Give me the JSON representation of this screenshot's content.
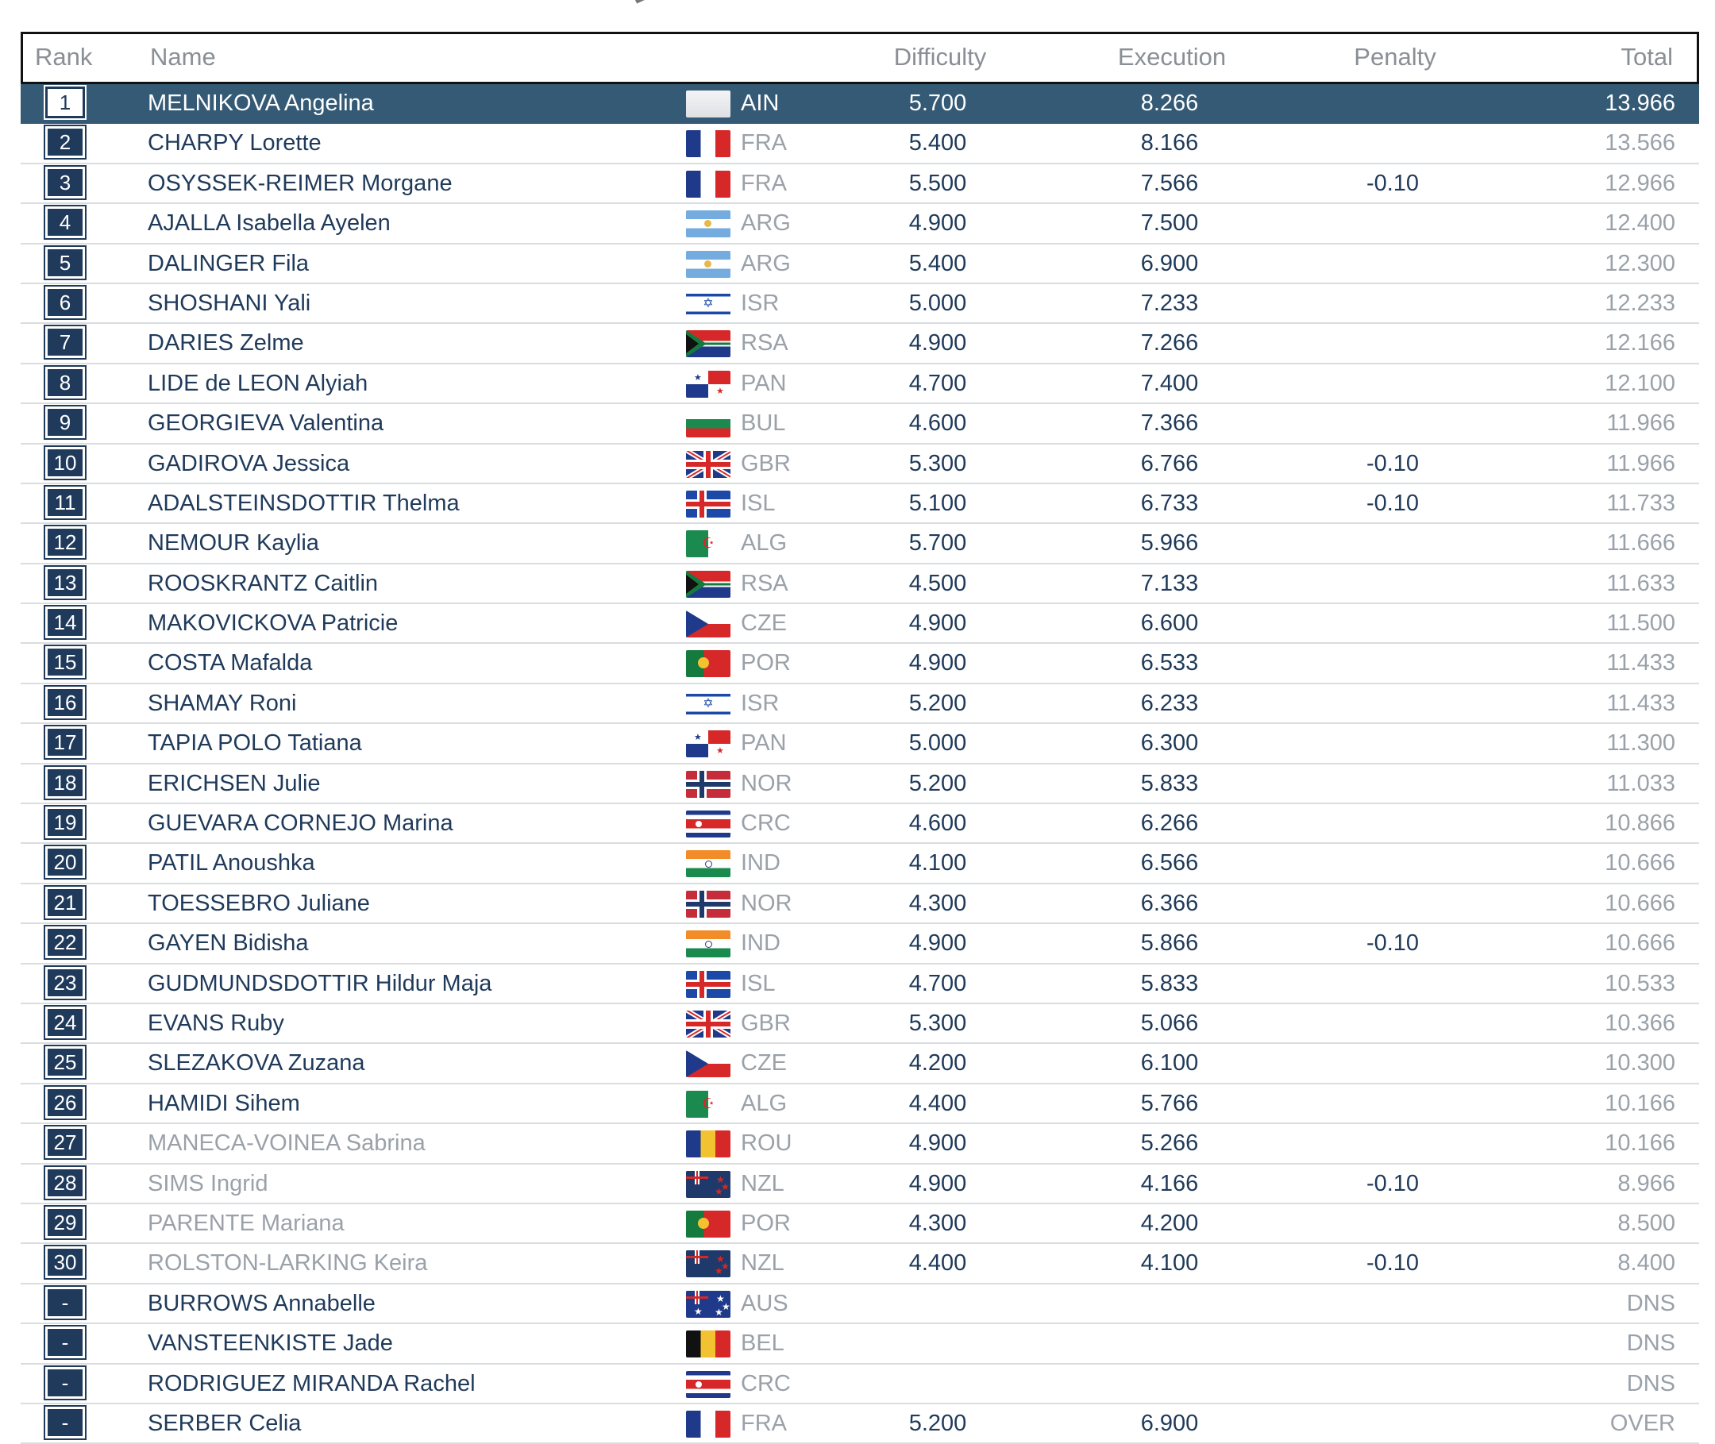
{
  "headers": {
    "rank": "Rank",
    "name": "Name",
    "difficulty": "Difficulty",
    "execution": "Execution",
    "penalty": "Penalty",
    "total": "Total"
  },
  "rows": [
    {
      "rank": "1",
      "name": "MELNIKOVA Angelina",
      "country": "AIN",
      "difficulty": "5.700",
      "execution": "8.266",
      "penalty": "",
      "total": "13.966"
    },
    {
      "rank": "2",
      "name": "CHARPY Lorette",
      "country": "FRA",
      "difficulty": "5.400",
      "execution": "8.166",
      "penalty": "",
      "total": "13.566"
    },
    {
      "rank": "3",
      "name": "OSYSSEK-REIMER Morgane",
      "country": "FRA",
      "difficulty": "5.500",
      "execution": "7.566",
      "penalty": "-0.10",
      "total": "12.966"
    },
    {
      "rank": "4",
      "name": "AJALLA Isabella Ayelen",
      "country": "ARG",
      "difficulty": "4.900",
      "execution": "7.500",
      "penalty": "",
      "total": "12.400"
    },
    {
      "rank": "5",
      "name": "DALINGER Fila",
      "country": "ARG",
      "difficulty": "5.400",
      "execution": "6.900",
      "penalty": "",
      "total": "12.300"
    },
    {
      "rank": "6",
      "name": "SHOSHANI Yali",
      "country": "ISR",
      "difficulty": "5.000",
      "execution": "7.233",
      "penalty": "",
      "total": "12.233"
    },
    {
      "rank": "7",
      "name": "DARIES Zelme",
      "country": "RSA",
      "difficulty": "4.900",
      "execution": "7.266",
      "penalty": "",
      "total": "12.166"
    },
    {
      "rank": "8",
      "name": "LIDE de LEON Alyiah",
      "country": "PAN",
      "difficulty": "4.700",
      "execution": "7.400",
      "penalty": "",
      "total": "12.100"
    },
    {
      "rank": "9",
      "name": "GEORGIEVA Valentina",
      "country": "BUL",
      "difficulty": "4.600",
      "execution": "7.366",
      "penalty": "",
      "total": "11.966"
    },
    {
      "rank": "10",
      "name": "GADIROVA Jessica",
      "country": "GBR",
      "difficulty": "5.300",
      "execution": "6.766",
      "penalty": "-0.10",
      "total": "11.966"
    },
    {
      "rank": "11",
      "name": "ADALSTEINSDOTTIR Thelma",
      "country": "ISL",
      "difficulty": "5.100",
      "execution": "6.733",
      "penalty": "-0.10",
      "total": "11.733"
    },
    {
      "rank": "12",
      "name": "NEMOUR Kaylia",
      "country": "ALG",
      "difficulty": "5.700",
      "execution": "5.966",
      "penalty": "",
      "total": "11.666"
    },
    {
      "rank": "13",
      "name": "ROOSKRANTZ Caitlin",
      "country": "RSA",
      "difficulty": "4.500",
      "execution": "7.133",
      "penalty": "",
      "total": "11.633"
    },
    {
      "rank": "14",
      "name": "MAKOVICKOVA Patricie",
      "country": "CZE",
      "difficulty": "4.900",
      "execution": "6.600",
      "penalty": "",
      "total": "11.500"
    },
    {
      "rank": "15",
      "name": "COSTA Mafalda",
      "country": "POR",
      "difficulty": "4.900",
      "execution": "6.533",
      "penalty": "",
      "total": "11.433"
    },
    {
      "rank": "16",
      "name": "SHAMAY Roni",
      "country": "ISR",
      "difficulty": "5.200",
      "execution": "6.233",
      "penalty": "",
      "total": "11.433"
    },
    {
      "rank": "17",
      "name": "TAPIA POLO Tatiana",
      "country": "PAN",
      "difficulty": "5.000",
      "execution": "6.300",
      "penalty": "",
      "total": "11.300"
    },
    {
      "rank": "18",
      "name": "ERICHSEN Julie",
      "country": "NOR",
      "difficulty": "5.200",
      "execution": "5.833",
      "penalty": "",
      "total": "11.033"
    },
    {
      "rank": "19",
      "name": "GUEVARA CORNEJO Marina",
      "country": "CRC",
      "difficulty": "4.600",
      "execution": "6.266",
      "penalty": "",
      "total": "10.866"
    },
    {
      "rank": "20",
      "name": "PATIL Anoushka",
      "country": "IND",
      "difficulty": "4.100",
      "execution": "6.566",
      "penalty": "",
      "total": "10.666"
    },
    {
      "rank": "21",
      "name": "TOESSEBRO Juliane",
      "country": "NOR",
      "difficulty": "4.300",
      "execution": "6.366",
      "penalty": "",
      "total": "10.666"
    },
    {
      "rank": "22",
      "name": "GAYEN Bidisha",
      "country": "IND",
      "difficulty": "4.900",
      "execution": "5.866",
      "penalty": "-0.10",
      "total": "10.666"
    },
    {
      "rank": "23",
      "name": "GUDMUNDSDOTTIR Hildur Maja",
      "country": "ISL",
      "difficulty": "4.700",
      "execution": "5.833",
      "penalty": "",
      "total": "10.533"
    },
    {
      "rank": "24",
      "name": "EVANS Ruby",
      "country": "GBR",
      "difficulty": "5.300",
      "execution": "5.066",
      "penalty": "",
      "total": "10.366"
    },
    {
      "rank": "25",
      "name": "SLEZAKOVA Zuzana",
      "country": "CZE",
      "difficulty": "4.200",
      "execution": "6.100",
      "penalty": "",
      "total": "10.300"
    },
    {
      "rank": "26",
      "name": "HAMIDI Sihem",
      "country": "ALG",
      "difficulty": "4.400",
      "execution": "5.766",
      "penalty": "",
      "total": "10.166"
    },
    {
      "rank": "27",
      "name": "MANECA-VOINEA Sabrina",
      "country": "ROU",
      "difficulty": "4.900",
      "execution": "5.266",
      "penalty": "",
      "total": "10.166",
      "dim": true
    },
    {
      "rank": "28",
      "name": "SIMS Ingrid",
      "country": "NZL",
      "difficulty": "4.900",
      "execution": "4.166",
      "penalty": "-0.10",
      "total": "8.966",
      "dim": true
    },
    {
      "rank": "29",
      "name": "PARENTE Mariana",
      "country": "POR",
      "difficulty": "4.300",
      "execution": "4.200",
      "penalty": "",
      "total": "8.500",
      "dim": true
    },
    {
      "rank": "30",
      "name": "ROLSTON-LARKING Keira",
      "country": "NZL",
      "difficulty": "4.400",
      "execution": "4.100",
      "penalty": "-0.10",
      "total": "8.400",
      "dim": true
    },
    {
      "rank": "-",
      "name": "BURROWS Annabelle",
      "country": "AUS",
      "difficulty": "",
      "execution": "",
      "penalty": "",
      "total": "DNS"
    },
    {
      "rank": "-",
      "name": "VANSTEENKISTE Jade",
      "country": "BEL",
      "difficulty": "",
      "execution": "",
      "penalty": "",
      "total": "DNS"
    },
    {
      "rank": "-",
      "name": "RODRIGUEZ MIRANDA Rachel",
      "country": "CRC",
      "difficulty": "",
      "execution": "",
      "penalty": "",
      "total": "DNS"
    },
    {
      "rank": "-",
      "name": "SERBER Celia",
      "country": "FRA",
      "difficulty": "5.200",
      "execution": "6.900",
      "penalty": "",
      "total": "OVER"
    }
  ],
  "colors": {
    "header_border": "#111111",
    "rank_badge": "#1f3a5a",
    "highlight_row": "#355a75",
    "text_primary": "#1f3a5a",
    "text_muted": "#9aa1a9"
  }
}
